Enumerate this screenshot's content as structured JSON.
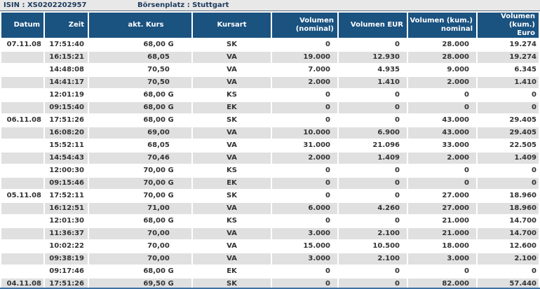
{
  "header": {
    "isin": "ISIN : XS0202202957",
    "boersenplatz": "Börsenplatz : Stuttgart"
  },
  "colors": {
    "header_bg": "#1a5280",
    "row_alt_bg": "#e0e0e0",
    "titlebar_bg": "#e8e8e8",
    "title_text": "#1b3a5c",
    "data_text": "#333333",
    "bottom_line": "#3f72a3"
  },
  "table": {
    "columns": [
      {
        "key": "datum",
        "label": "Datum",
        "align": "right"
      },
      {
        "key": "zeit",
        "label": "Zeit",
        "align": "right"
      },
      {
        "key": "kurs",
        "label": "akt. Kurs",
        "align": "center"
      },
      {
        "key": "kursart",
        "label": "Kursart",
        "align": "center"
      },
      {
        "key": "vol_nominal",
        "label": "Volumen\n(nominal)",
        "align": "right"
      },
      {
        "key": "vol_eur",
        "label": "Volumen EUR",
        "align": "right"
      },
      {
        "key": "vol_kum_nominal",
        "label": "Volumen (kum.)\nnominal",
        "align": "right"
      },
      {
        "key": "vol_kum_euro",
        "label": "Volumen (kum.)\nEuro",
        "align": "right"
      }
    ],
    "rows": [
      {
        "datum": "07.11.08",
        "zeit": "17:51:40",
        "kurs": "68,00 G",
        "kursart": "SK",
        "vol_nominal": "0",
        "vol_eur": "0",
        "vol_kum_nominal": "28.000",
        "vol_kum_euro": "19.274"
      },
      {
        "datum": "",
        "zeit": "16:15:21",
        "kurs": "68,05",
        "kursart": "VA",
        "vol_nominal": "19.000",
        "vol_eur": "12.930",
        "vol_kum_nominal": "28.000",
        "vol_kum_euro": "19.274"
      },
      {
        "datum": "",
        "zeit": "14:48:08",
        "kurs": "70,50",
        "kursart": "VA",
        "vol_nominal": "7.000",
        "vol_eur": "4.935",
        "vol_kum_nominal": "9.000",
        "vol_kum_euro": "6.345"
      },
      {
        "datum": "",
        "zeit": "14:41:17",
        "kurs": "70,50",
        "kursart": "VA",
        "vol_nominal": "2.000",
        "vol_eur": "1.410",
        "vol_kum_nominal": "2.000",
        "vol_kum_euro": "1.410"
      },
      {
        "datum": "",
        "zeit": "12:01:19",
        "kurs": "68,00 G",
        "kursart": "KS",
        "vol_nominal": "0",
        "vol_eur": "0",
        "vol_kum_nominal": "0",
        "vol_kum_euro": "0"
      },
      {
        "datum": "",
        "zeit": "09:15:40",
        "kurs": "68,00 G",
        "kursart": "EK",
        "vol_nominal": "0",
        "vol_eur": "0",
        "vol_kum_nominal": "0",
        "vol_kum_euro": "0"
      },
      {
        "datum": "06.11.08",
        "zeit": "17:51:26",
        "kurs": "68,00 G",
        "kursart": "SK",
        "vol_nominal": "0",
        "vol_eur": "0",
        "vol_kum_nominal": "43.000",
        "vol_kum_euro": "29.405"
      },
      {
        "datum": "",
        "zeit": "16:08:20",
        "kurs": "69,00",
        "kursart": "VA",
        "vol_nominal": "10.000",
        "vol_eur": "6.900",
        "vol_kum_nominal": "43.000",
        "vol_kum_euro": "29.405"
      },
      {
        "datum": "",
        "zeit": "15:52:11",
        "kurs": "68,05",
        "kursart": "VA",
        "vol_nominal": "31.000",
        "vol_eur": "21.096",
        "vol_kum_nominal": "33.000",
        "vol_kum_euro": "22.505"
      },
      {
        "datum": "",
        "zeit": "14:54:43",
        "kurs": "70,46",
        "kursart": "VA",
        "vol_nominal": "2.000",
        "vol_eur": "1.409",
        "vol_kum_nominal": "2.000",
        "vol_kum_euro": "1.409"
      },
      {
        "datum": "",
        "zeit": "12:00:30",
        "kurs": "70,00 G",
        "kursart": "KS",
        "vol_nominal": "0",
        "vol_eur": "0",
        "vol_kum_nominal": "0",
        "vol_kum_euro": "0"
      },
      {
        "datum": "",
        "zeit": "09:15:46",
        "kurs": "70,00 G",
        "kursart": "EK",
        "vol_nominal": "0",
        "vol_eur": "0",
        "vol_kum_nominal": "0",
        "vol_kum_euro": "0"
      },
      {
        "datum": "05.11.08",
        "zeit": "17:52:11",
        "kurs": "70,00 G",
        "kursart": "SK",
        "vol_nominal": "0",
        "vol_eur": "0",
        "vol_kum_nominal": "27.000",
        "vol_kum_euro": "18.960"
      },
      {
        "datum": "",
        "zeit": "16:12:51",
        "kurs": "71,00",
        "kursart": "VA",
        "vol_nominal": "6.000",
        "vol_eur": "4.260",
        "vol_kum_nominal": "27.000",
        "vol_kum_euro": "18.960"
      },
      {
        "datum": "",
        "zeit": "12:01:30",
        "kurs": "68,00 G",
        "kursart": "KS",
        "vol_nominal": "0",
        "vol_eur": "0",
        "vol_kum_nominal": "21.000",
        "vol_kum_euro": "14.700"
      },
      {
        "datum": "",
        "zeit": "11:36:37",
        "kurs": "70,00",
        "kursart": "VA",
        "vol_nominal": "3.000",
        "vol_eur": "2.100",
        "vol_kum_nominal": "21.000",
        "vol_kum_euro": "14.700"
      },
      {
        "datum": "",
        "zeit": "10:02:22",
        "kurs": "70,00",
        "kursart": "VA",
        "vol_nominal": "15.000",
        "vol_eur": "10.500",
        "vol_kum_nominal": "18.000",
        "vol_kum_euro": "12.600"
      },
      {
        "datum": "",
        "zeit": "09:38:19",
        "kurs": "70,00",
        "kursart": "VA",
        "vol_nominal": "3.000",
        "vol_eur": "2.100",
        "vol_kum_nominal": "3.000",
        "vol_kum_euro": "2.100"
      },
      {
        "datum": "",
        "zeit": "09:17:46",
        "kurs": "68,00 G",
        "kursart": "EK",
        "vol_nominal": "0",
        "vol_eur": "0",
        "vol_kum_nominal": "0",
        "vol_kum_euro": "0"
      },
      {
        "datum": "04.11.08",
        "zeit": "17:51:26",
        "kurs": "69,50 G",
        "kursart": "SK",
        "vol_nominal": "0",
        "vol_eur": "0",
        "vol_kum_nominal": "82.000",
        "vol_kum_euro": "57.440"
      }
    ]
  }
}
